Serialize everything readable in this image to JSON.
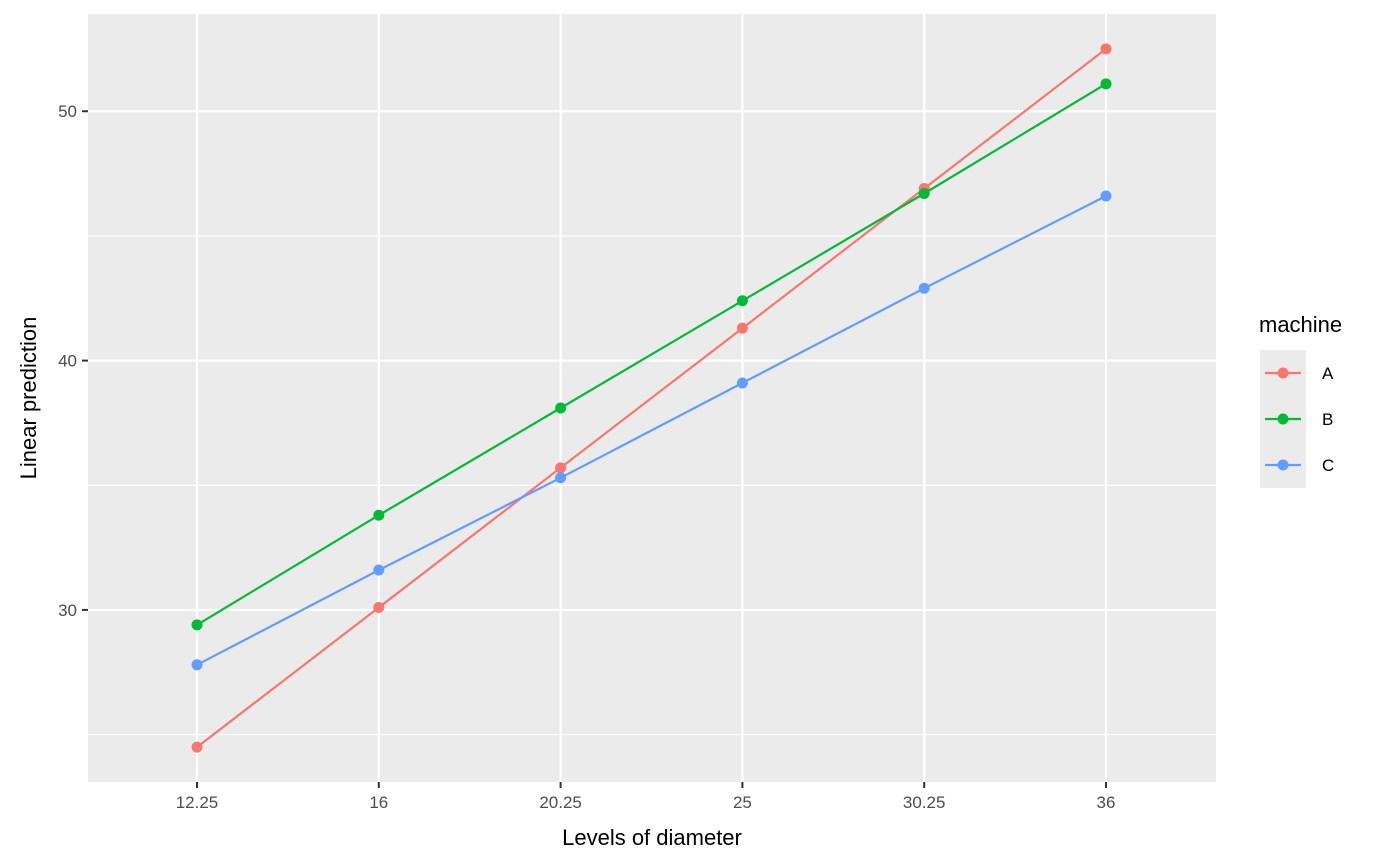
{
  "chart_data": {
    "type": "line",
    "xlabel": "Levels of diameter",
    "ylabel": "Linear prediction",
    "categories": [
      "12.25",
      "16",
      "20.25",
      "25",
      "30.25",
      "36"
    ],
    "ylim": [
      23.1,
      53.9
    ],
    "yticks": [
      30,
      40,
      50
    ],
    "yminor": [
      25,
      35,
      45
    ],
    "grid": true,
    "legend": {
      "title": "machine",
      "position": "right"
    },
    "series": [
      {
        "name": "A",
        "color": "#F8766D",
        "values": [
          24.5,
          30.1,
          35.7,
          41.3,
          46.9,
          52.5
        ]
      },
      {
        "name": "B",
        "color": "#00BA38",
        "values": [
          29.4,
          33.8,
          38.1,
          42.4,
          46.7,
          51.1
        ]
      },
      {
        "name": "C",
        "color": "#619CFF",
        "values": [
          27.8,
          31.6,
          35.3,
          39.1,
          42.9,
          46.6
        ]
      }
    ],
    "colors": {
      "panel_background": "#EBEBEB",
      "grid_line": "#FFFFFF",
      "legend_key_background": "#EBEBEB"
    }
  }
}
